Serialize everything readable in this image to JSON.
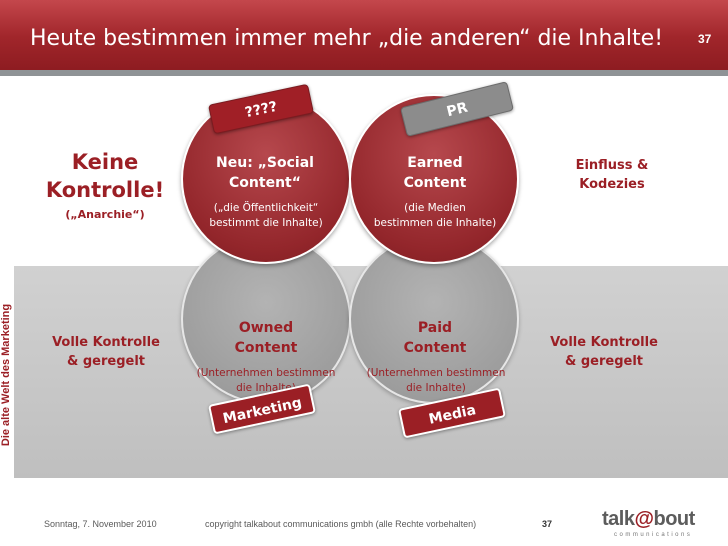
{
  "header": {
    "title": "Heute bestimmen immer mehr „die anderen“ die Inhalte!",
    "slide_number": "37"
  },
  "side_label": "Die alte Welt des Marketing",
  "upper": {
    "left_title_line1": "Keine",
    "left_title_line2": "Kontrolle!",
    "left_subtitle": "(„Anarchie“)",
    "social_line1": "Neu: „Social",
    "social_line2": "Content“",
    "social_sub_line1": "(„die Öffentlichkeit“",
    "social_sub_line2": "bestimmt die Inhalte)",
    "earned_line1": "Earned",
    "earned_line2": "Content",
    "earned_sub_line1": "(die Medien",
    "earned_sub_line2": "bestimmen die Inhalte)",
    "right_line1": "Einfluss &",
    "right_line2": "Kodezies"
  },
  "lower": {
    "left_line1": "Volle Kontrolle",
    "left_line2": "& geregelt",
    "owned_line1": "Owned",
    "owned_line2": "Content",
    "owned_sub_line1": "(Unternehmen bestimmen",
    "owned_sub_line2": "die Inhalte)",
    "paid_line1": "Paid",
    "paid_line2": "Content",
    "paid_sub_line1": "(Unternehmen bestimmen",
    "paid_sub_line2": "die Inhalte)",
    "right_line1": "Volle Kontrolle",
    "right_line2": "& geregelt"
  },
  "tags": {
    "question": "????",
    "pr": "PR",
    "marketing": "Marketing",
    "media": "Media"
  },
  "footer": {
    "date": "Sonntag, 7. November 2010",
    "copyright": "copyright talkabout communications gmbh (alle Rechte vorbehalten)",
    "page": "37"
  },
  "logo": {
    "text_a": "talk",
    "text_at": "@",
    "text_b": "bout",
    "subtitle": "communications"
  },
  "colors": {
    "brand_red": "#9b1f25",
    "header_red": "#a1262b",
    "grey": "#9c9c9c"
  }
}
